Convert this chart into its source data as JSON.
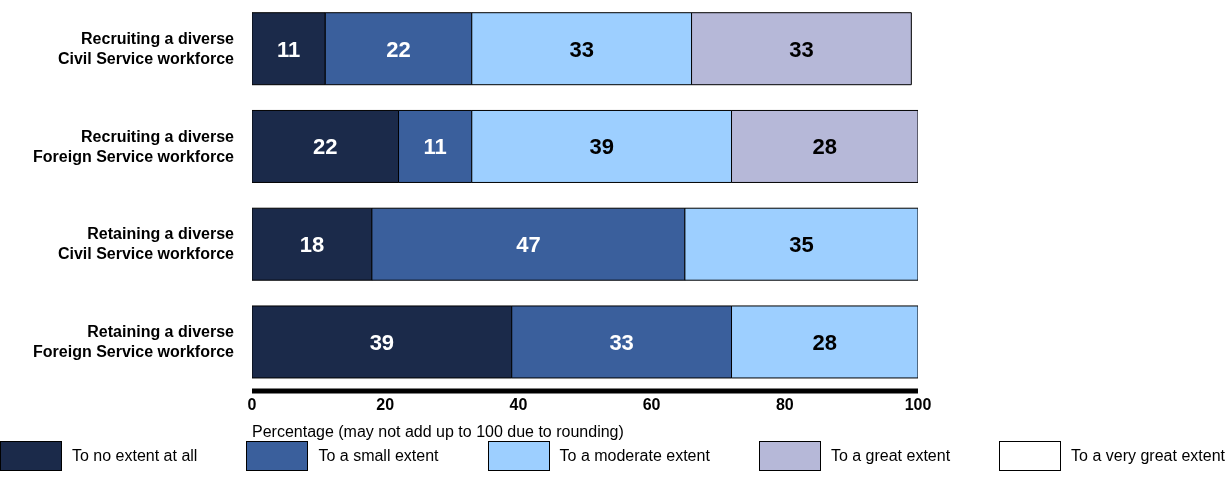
{
  "chart_data": {
    "type": "bar",
    "orientation": "horizontal",
    "stacked": true,
    "data_labels": true,
    "grid": false,
    "legend": "bottom",
    "xlabel": "Percentage (may not add up to 100 due to rounding)",
    "categories": [
      "Recruiting a diverse\nCivil Service workforce",
      "Recruiting a diverse\nForeign Service workforce",
      "Retaining a diverse\nCivil Service workforce",
      "Retaining a diverse\nForeign Service workforce"
    ],
    "xlim": [
      0,
      100
    ],
    "xticks": [
      0,
      20,
      40,
      60,
      80,
      100
    ],
    "series": [
      {
        "name": "To no extent at all",
        "color": "#1b2a4a",
        "values": [
          11,
          22,
          18,
          39
        ]
      },
      {
        "name": "To a small extent",
        "color": "#3a5f9c",
        "values": [
          22,
          11,
          47,
          33
        ]
      },
      {
        "name": "To a moderate extent",
        "color": "#9dcfff",
        "values": [
          33,
          39,
          35,
          28
        ]
      },
      {
        "name": "To a great extent",
        "color": "#b6b8d8",
        "values": [
          33,
          28,
          null,
          null
        ]
      },
      {
        "name": "To a very great extent",
        "color": "#ffffff",
        "values": [
          null,
          null,
          null,
          null
        ]
      }
    ]
  }
}
